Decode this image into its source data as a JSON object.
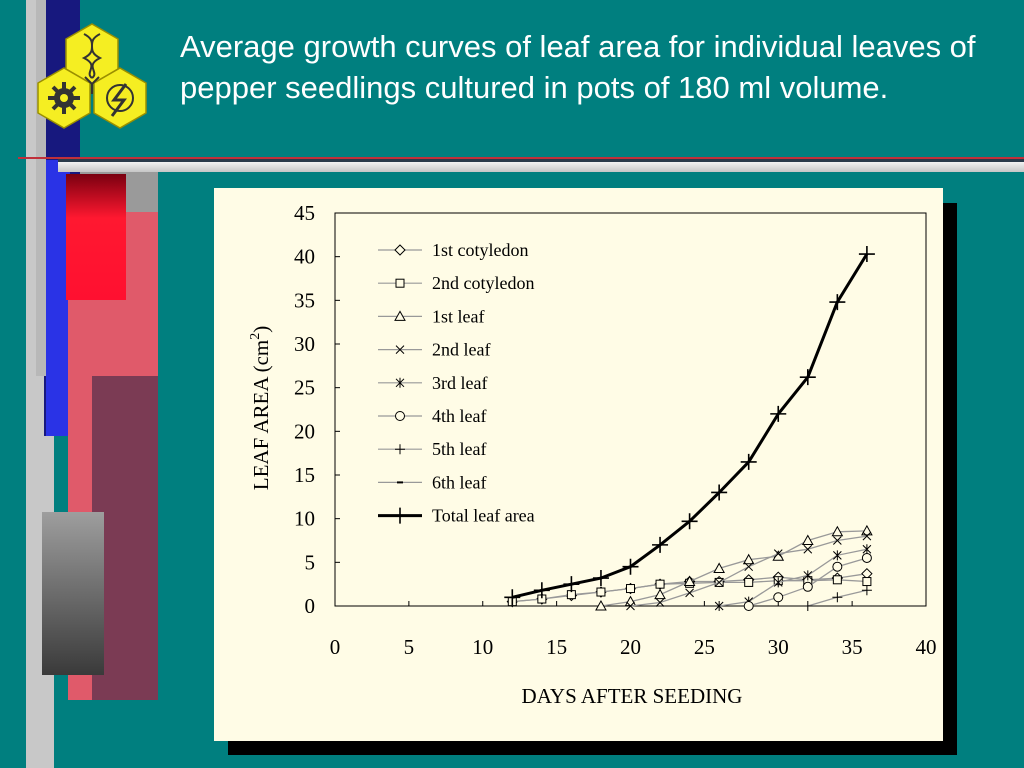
{
  "slide": {
    "title": "Average growth curves of leaf area for individual leaves of pepper seedlings cultured in pots of 180 ml volume."
  },
  "colors": {
    "background": "#007f7f",
    "title_text": "#ffffff",
    "chart_background": "#fffce6",
    "logo_yellow": "#f5ee22"
  },
  "chart_data": {
    "type": "line",
    "title": "",
    "xlabel": "DAYS AFTER SEEDING",
    "ylabel": "LEAF AREA (cm",
    "ylabel_superscript": "2",
    "ylabel_suffix": ")",
    "xlim": [
      0,
      40
    ],
    "ylim": [
      0,
      45
    ],
    "xticks": [
      0,
      5,
      10,
      15,
      20,
      25,
      30,
      35,
      40
    ],
    "yticks": [
      0,
      5,
      10,
      15,
      20,
      25,
      30,
      35,
      40,
      45
    ],
    "grid": false,
    "legend_position": "top-left",
    "series": [
      {
        "name": "1st cotyledon",
        "marker": "diamond",
        "bold": false,
        "x": [
          12,
          14,
          16,
          18,
          20,
          22,
          24,
          26,
          28,
          30,
          32,
          34,
          36
        ],
        "y": [
          0.5,
          0.8,
          1.2,
          1.6,
          2.0,
          2.5,
          2.8,
          2.8,
          3.0,
          3.3,
          3.0,
          3.2,
          3.7
        ]
      },
      {
        "name": "2nd cotyledon",
        "marker": "square",
        "bold": false,
        "x": [
          12,
          14,
          16,
          18,
          20,
          22,
          24,
          26,
          28,
          30,
          32,
          34,
          36
        ],
        "y": [
          0.5,
          0.8,
          1.3,
          1.6,
          2.0,
          2.5,
          2.6,
          2.7,
          2.7,
          2.9,
          2.9,
          3.0,
          2.8
        ]
      },
      {
        "name": "1st leaf",
        "marker": "triangle",
        "bold": false,
        "x": [
          18,
          20,
          22,
          24,
          26,
          28,
          30,
          32,
          34,
          36
        ],
        "y": [
          0,
          0.5,
          1.3,
          2.8,
          4.3,
          5.3,
          5.7,
          7.5,
          8.5,
          8.6
        ]
      },
      {
        "name": "2nd leaf",
        "marker": "x",
        "bold": false,
        "x": [
          20,
          22,
          24,
          26,
          28,
          30,
          32,
          34,
          36
        ],
        "y": [
          0,
          0.4,
          1.5,
          2.7,
          4.5,
          6.0,
          6.5,
          7.5,
          8.0
        ]
      },
      {
        "name": "3rd leaf",
        "marker": "asterisk",
        "bold": false,
        "x": [
          26,
          28,
          30,
          32,
          34,
          36
        ],
        "y": [
          0,
          0.5,
          2.7,
          3.5,
          5.8,
          6.5
        ]
      },
      {
        "name": "4th leaf",
        "marker": "circle",
        "bold": false,
        "x": [
          28,
          30,
          32,
          34,
          36
        ],
        "y": [
          0,
          1.0,
          2.2,
          4.5,
          5.5
        ]
      },
      {
        "name": "5th leaf",
        "marker": "plus",
        "bold": false,
        "x": [
          32,
          34,
          36
        ],
        "y": [
          0,
          1.0,
          1.8
        ]
      },
      {
        "name": "6th leaf",
        "marker": "dash",
        "bold": false,
        "x": [],
        "y": []
      },
      {
        "name": "Total leaf area",
        "marker": "plus",
        "bold": true,
        "x": [
          12,
          14,
          16,
          18,
          20,
          22,
          24,
          26,
          28,
          30,
          32,
          34,
          36
        ],
        "y": [
          1.0,
          1.8,
          2.5,
          3.2,
          4.5,
          7.0,
          9.7,
          13.0,
          16.5,
          22.0,
          26.2,
          34.8,
          40.3
        ]
      }
    ]
  }
}
